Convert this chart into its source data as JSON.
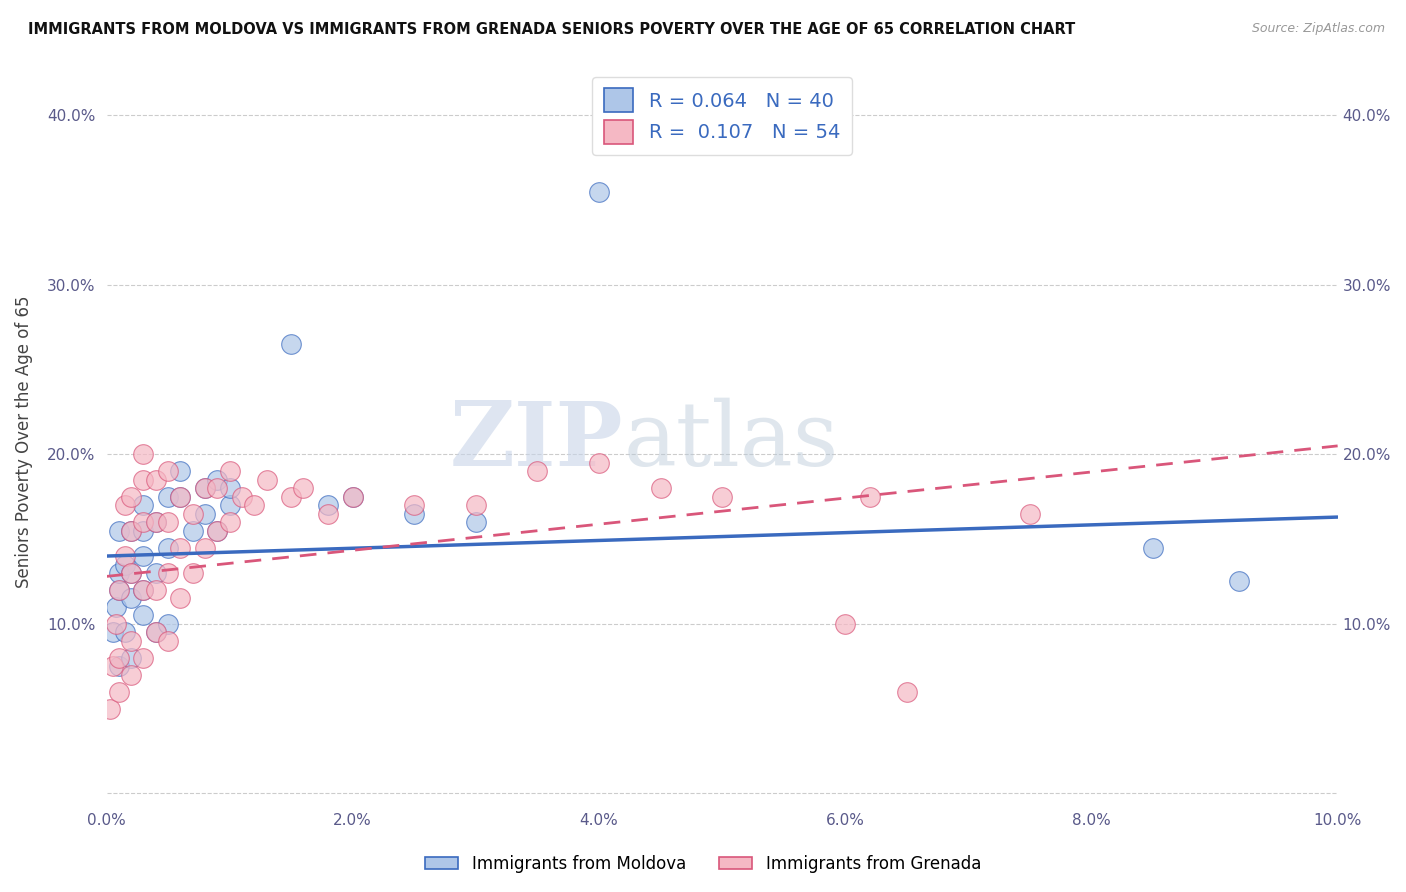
{
  "title": "IMMIGRANTS FROM MOLDOVA VS IMMIGRANTS FROM GRENADA SENIORS POVERTY OVER THE AGE OF 65 CORRELATION CHART",
  "source": "Source: ZipAtlas.com",
  "ylabel": "Seniors Poverty Over the Age of 65",
  "legend_label1": "Immigrants from Moldova",
  "legend_label2": "Immigrants from Grenada",
  "r1": "0.064",
  "n1": "40",
  "r2": "0.107",
  "n2": "54",
  "color1": "#aec6e8",
  "color2": "#f5b8c4",
  "line_color1": "#3a6abf",
  "line_color2": "#d9567a",
  "xlim": [
    0,
    0.1
  ],
  "ylim": [
    -0.005,
    0.42
  ],
  "xticks": [
    0,
    0.02,
    0.04,
    0.06,
    0.08,
    0.1
  ],
  "yticks": [
    0.0,
    0.1,
    0.2,
    0.3,
    0.4
  ],
  "watermark": "ZIPatlas",
  "moldova_x": [
    0.0005,
    0.0008,
    0.001,
    0.001,
    0.001,
    0.001,
    0.0015,
    0.0015,
    0.002,
    0.002,
    0.002,
    0.002,
    0.003,
    0.003,
    0.003,
    0.003,
    0.003,
    0.004,
    0.004,
    0.004,
    0.005,
    0.005,
    0.005,
    0.006,
    0.006,
    0.007,
    0.008,
    0.008,
    0.009,
    0.009,
    0.01,
    0.01,
    0.015,
    0.018,
    0.02,
    0.025,
    0.03,
    0.04,
    0.085,
    0.092
  ],
  "moldova_y": [
    0.095,
    0.11,
    0.075,
    0.12,
    0.13,
    0.155,
    0.095,
    0.135,
    0.08,
    0.115,
    0.13,
    0.155,
    0.105,
    0.12,
    0.14,
    0.155,
    0.17,
    0.095,
    0.13,
    0.16,
    0.1,
    0.145,
    0.175,
    0.175,
    0.19,
    0.155,
    0.165,
    0.18,
    0.185,
    0.155,
    0.17,
    0.18,
    0.265,
    0.17,
    0.175,
    0.165,
    0.16,
    0.355,
    0.145,
    0.125
  ],
  "grenada_x": [
    0.0003,
    0.0005,
    0.0008,
    0.001,
    0.001,
    0.001,
    0.0015,
    0.0015,
    0.002,
    0.002,
    0.002,
    0.002,
    0.002,
    0.003,
    0.003,
    0.003,
    0.003,
    0.003,
    0.004,
    0.004,
    0.004,
    0.004,
    0.005,
    0.005,
    0.005,
    0.005,
    0.006,
    0.006,
    0.006,
    0.007,
    0.007,
    0.008,
    0.008,
    0.009,
    0.009,
    0.01,
    0.01,
    0.011,
    0.012,
    0.013,
    0.015,
    0.016,
    0.018,
    0.02,
    0.025,
    0.03,
    0.035,
    0.04,
    0.045,
    0.05,
    0.06,
    0.062,
    0.065,
    0.075
  ],
  "grenada_y": [
    0.05,
    0.075,
    0.1,
    0.06,
    0.08,
    0.12,
    0.14,
    0.17,
    0.07,
    0.09,
    0.13,
    0.155,
    0.175,
    0.08,
    0.12,
    0.16,
    0.185,
    0.2,
    0.095,
    0.12,
    0.16,
    0.185,
    0.09,
    0.13,
    0.16,
    0.19,
    0.115,
    0.145,
    0.175,
    0.13,
    0.165,
    0.145,
    0.18,
    0.155,
    0.18,
    0.16,
    0.19,
    0.175,
    0.17,
    0.185,
    0.175,
    0.18,
    0.165,
    0.175,
    0.17,
    0.17,
    0.19,
    0.195,
    0.18,
    0.175,
    0.1,
    0.175,
    0.06,
    0.165
  ],
  "trend1_x0": 0.0,
  "trend1_x1": 0.1,
  "trend1_y0": 0.14,
  "trend1_y1": 0.163,
  "trend2_x0": 0.0,
  "trend2_x1": 0.1,
  "trend2_y0": 0.128,
  "trend2_y1": 0.205
}
